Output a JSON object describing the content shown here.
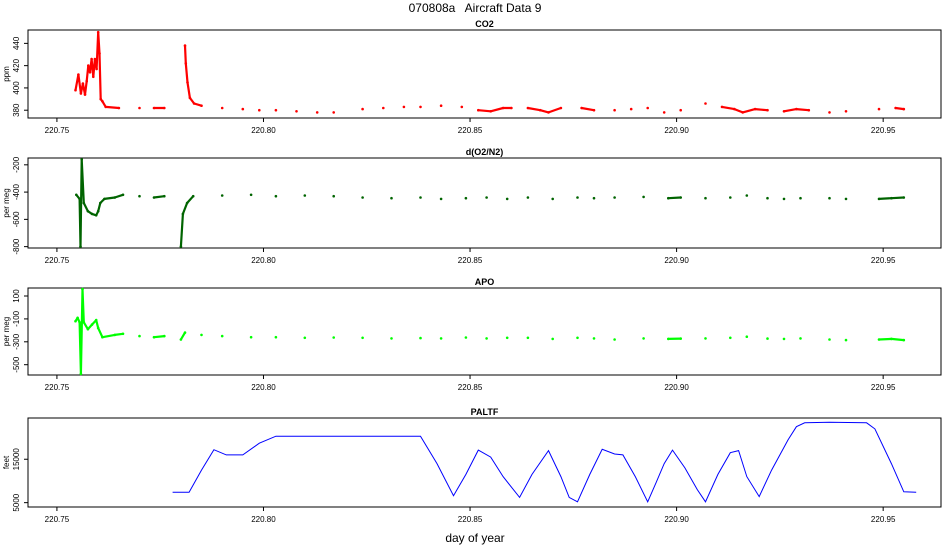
{
  "figure": {
    "title": "070808a   Aircraft Data 9",
    "xlabel": "day of year"
  },
  "chart_data": [
    {
      "type": "scatter",
      "title": "CO2",
      "ylabel": "ppm",
      "xlim": [
        220.743,
        220.964
      ],
      "ylim": [
        373,
        452
      ],
      "xticks": [
        220.75,
        220.8,
        220.85,
        220.9,
        220.95
      ],
      "yticks": [
        380,
        400,
        420,
        440
      ],
      "color": "#ff0000",
      "series": [
        {
          "name": "",
          "points": [
            [
              220.7545,
              398
            ],
            [
              220.7552,
              412
            ],
            [
              220.7558,
              395
            ],
            [
              220.7563,
              404
            ],
            [
              220.7568,
              394
            ],
            [
              220.7572,
              406
            ],
            [
              220.7576,
              420
            ],
            [
              220.758,
              414
            ],
            [
              220.7584,
              426
            ],
            [
              220.7588,
              410
            ],
            [
              220.7592,
              426
            ],
            [
              220.7596,
              417
            ],
            [
              220.76,
              450
            ],
            [
              220.7603,
              431
            ],
            [
              220.7606,
              390
            ],
            [
              220.761,
              388
            ],
            [
              220.7618,
              383
            ],
            [
              220.765,
              382
            ],
            [
              220.77,
              382
            ],
            [
              220.7735,
              382
            ],
            [
              220.776,
              382
            ],
            [
              220.781,
              438
            ],
            [
              220.7812,
              422
            ],
            [
              220.7816,
              405
            ],
            [
              220.7822,
              391
            ],
            [
              220.7832,
              386
            ],
            [
              220.785,
              384
            ],
            [
              220.79,
              382
            ],
            [
              220.795,
              381
            ],
            [
              220.799,
              380
            ],
            [
              220.803,
              380
            ],
            [
              220.808,
              379
            ],
            [
              220.813,
              378
            ],
            [
              220.817,
              378
            ],
            [
              220.824,
              381
            ],
            [
              220.829,
              382
            ],
            [
              220.834,
              383
            ],
            [
              220.838,
              383
            ],
            [
              220.843,
              384
            ],
            [
              220.848,
              383
            ],
            [
              220.852,
              380
            ],
            [
              220.855,
              379
            ],
            [
              220.858,
              382
            ],
            [
              220.86,
              382
            ],
            [
              220.864,
              382
            ],
            [
              220.867,
              380
            ],
            [
              220.869,
              378
            ],
            [
              220.872,
              382
            ],
            [
              220.877,
              382
            ],
            [
              220.88,
              380
            ],
            [
              220.885,
              380
            ],
            [
              220.889,
              381
            ],
            [
              220.893,
              382
            ],
            [
              220.897,
              378
            ],
            [
              220.901,
              380
            ],
            [
              220.907,
              386
            ],
            [
              220.911,
              383
            ],
            [
              220.914,
              381
            ],
            [
              220.916,
              378
            ],
            [
              220.919,
              381
            ],
            [
              220.922,
              380
            ],
            [
              220.926,
              379
            ],
            [
              220.929,
              381
            ],
            [
              220.932,
              380
            ],
            [
              220.937,
              378
            ],
            [
              220.941,
              379
            ],
            [
              220.949,
              381
            ],
            [
              220.953,
              382
            ],
            [
              220.955,
              381
            ]
          ]
        }
      ]
    },
    {
      "type": "scatter",
      "title": "d(O2/N2)",
      "ylabel": "per meg",
      "xlim": [
        220.743,
        220.964
      ],
      "ylim": [
        -810,
        -150
      ],
      "xticks": [
        220.75,
        220.8,
        220.85,
        220.9,
        220.95
      ],
      "yticks": [
        -200,
        -400,
        -600,
        -800
      ],
      "color": "#006400",
      "series": [
        {
          "name": "",
          "points": [
            [
              220.7547,
              -420
            ],
            [
              220.7555,
              -450
            ],
            [
              220.7557,
              -800
            ],
            [
              220.756,
              -160
            ],
            [
              220.7565,
              -480
            ],
            [
              220.7575,
              -540
            ],
            [
              220.7585,
              -560
            ],
            [
              220.7595,
              -570
            ],
            [
              220.76,
              -540
            ],
            [
              220.7605,
              -480
            ],
            [
              220.7615,
              -450
            ],
            [
              220.764,
              -440
            ],
            [
              220.766,
              -420
            ],
            [
              220.77,
              -430
            ],
            [
              220.7735,
              -440
            ],
            [
              220.776,
              -430
            ],
            [
              220.78,
              -800
            ],
            [
              220.7805,
              -560
            ],
            [
              220.7815,
              -480
            ],
            [
              220.783,
              -430
            ],
            [
              220.79,
              -425
            ],
            [
              220.797,
              -420
            ],
            [
              220.803,
              -430
            ],
            [
              220.81,
              -425
            ],
            [
              220.817,
              -430
            ],
            [
              220.824,
              -440
            ],
            [
              220.831,
              -445
            ],
            [
              220.838,
              -440
            ],
            [
              220.843,
              -450
            ],
            [
              220.849,
              -445
            ],
            [
              220.854,
              -440
            ],
            [
              220.859,
              -450
            ],
            [
              220.864,
              -440
            ],
            [
              220.87,
              -450
            ],
            [
              220.876,
              -440
            ],
            [
              220.88,
              -445
            ],
            [
              220.885,
              -440
            ],
            [
              220.892,
              -435
            ],
            [
              220.898,
              -445
            ],
            [
              220.901,
              -440
            ],
            [
              220.907,
              -445
            ],
            [
              220.913,
              -440
            ],
            [
              220.917,
              -425
            ],
            [
              220.922,
              -445
            ],
            [
              220.926,
              -450
            ],
            [
              220.93,
              -445
            ],
            [
              220.937,
              -445
            ],
            [
              220.941,
              -450
            ],
            [
              220.949,
              -450
            ],
            [
              220.952,
              -445
            ],
            [
              220.955,
              -440
            ]
          ]
        }
      ]
    },
    {
      "type": "scatter",
      "title": "APO",
      "ylabel": "per meg",
      "xlim": [
        220.743,
        220.964
      ],
      "ylim": [
        -590,
        170
      ],
      "xticks": [
        220.75,
        220.8,
        220.85,
        220.9,
        220.95
      ],
      "yticks": [
        100,
        -100,
        -300,
        -500
      ],
      "color": "#00ff00",
      "series": [
        {
          "name": "",
          "points": [
            [
              220.7545,
              -120
            ],
            [
              220.755,
              -90
            ],
            [
              220.7555,
              -130
            ],
            [
              220.7558,
              -580
            ],
            [
              220.7562,
              160
            ],
            [
              220.7565,
              -130
            ],
            [
              220.7575,
              -190
            ],
            [
              220.7585,
              -150
            ],
            [
              220.7595,
              -110
            ],
            [
              220.76,
              -180
            ],
            [
              220.761,
              -260
            ],
            [
              220.764,
              -240
            ],
            [
              220.766,
              -230
            ],
            [
              220.77,
              -250
            ],
            [
              220.7735,
              -260
            ],
            [
              220.776,
              -250
            ],
            [
              220.78,
              -280
            ],
            [
              220.781,
              -220
            ],
            [
              220.785,
              -240
            ],
            [
              220.79,
              -250
            ],
            [
              220.797,
              -260
            ],
            [
              220.803,
              -260
            ],
            [
              220.81,
              -265
            ],
            [
              220.817,
              -262
            ],
            [
              220.824,
              -265
            ],
            [
              220.831,
              -270
            ],
            [
              220.838,
              -268
            ],
            [
              220.843,
              -270
            ],
            [
              220.849,
              -262
            ],
            [
              220.854,
              -270
            ],
            [
              220.859,
              -265
            ],
            [
              220.864,
              -265
            ],
            [
              220.87,
              -275
            ],
            [
              220.876,
              -265
            ],
            [
              220.88,
              -270
            ],
            [
              220.885,
              -280
            ],
            [
              220.892,
              -270
            ],
            [
              220.898,
              -275
            ],
            [
              220.901,
              -272
            ],
            [
              220.907,
              -270
            ],
            [
              220.913,
              -265
            ],
            [
              220.917,
              -255
            ],
            [
              220.922,
              -272
            ],
            [
              220.926,
              -275
            ],
            [
              220.93,
              -270
            ],
            [
              220.937,
              -280
            ],
            [
              220.941,
              -285
            ],
            [
              220.949,
              -280
            ],
            [
              220.952,
              -275
            ],
            [
              220.955,
              -285
            ]
          ]
        }
      ]
    },
    {
      "type": "line",
      "title": "PALTF",
      "ylabel": "feet",
      "xlim": [
        220.743,
        220.964
      ],
      "ylim": [
        4000,
        24500
      ],
      "xticks": [
        220.75,
        220.8,
        220.85,
        220.9,
        220.95
      ],
      "yticks": [
        5000,
        15000
      ],
      "color": "#0000ff",
      "series": [
        {
          "name": "",
          "points": [
            [
              220.778,
              7400
            ],
            [
              220.782,
              7400
            ],
            [
              220.785,
              12500
            ],
            [
              220.788,
              17200
            ],
            [
              220.791,
              16000
            ],
            [
              220.795,
              16000
            ],
            [
              220.799,
              18700
            ],
            [
              220.803,
              20300
            ],
            [
              220.808,
              20300
            ],
            [
              220.815,
              20300
            ],
            [
              220.825,
              20300
            ],
            [
              220.83,
              20300
            ],
            [
              220.838,
              20300
            ],
            [
              220.842,
              14000
            ],
            [
              220.846,
              6600
            ],
            [
              220.849,
              11500
            ],
            [
              220.852,
              17100
            ],
            [
              220.855,
              15500
            ],
            [
              220.858,
              11000
            ],
            [
              220.862,
              6200
            ],
            [
              220.865,
              11500
            ],
            [
              220.869,
              17000
            ],
            [
              220.872,
              11000
            ],
            [
              220.874,
              6200
            ],
            [
              220.876,
              5200
            ],
            [
              220.879,
              11500
            ],
            [
              220.882,
              17300
            ],
            [
              220.885,
              16200
            ],
            [
              220.887,
              16000
            ],
            [
              220.89,
              11000
            ],
            [
              220.893,
              5200
            ],
            [
              220.895,
              9500
            ],
            [
              220.897,
              14000
            ],
            [
              220.899,
              17100
            ],
            [
              220.902,
              13000
            ],
            [
              220.905,
              8000
            ],
            [
              220.907,
              5200
            ],
            [
              220.91,
              11500
            ],
            [
              220.913,
              16500
            ],
            [
              220.915,
              17000
            ],
            [
              220.917,
              11000
            ],
            [
              220.92,
              6400
            ],
            [
              220.923,
              12500
            ],
            [
              220.927,
              19500
            ],
            [
              220.929,
              22500
            ],
            [
              220.931,
              23400
            ],
            [
              220.937,
              23500
            ],
            [
              220.946,
              23400
            ],
            [
              220.948,
              22000
            ],
            [
              220.952,
              14000
            ],
            [
              220.955,
              7500
            ],
            [
              220.958,
              7400
            ]
          ]
        }
      ]
    }
  ]
}
